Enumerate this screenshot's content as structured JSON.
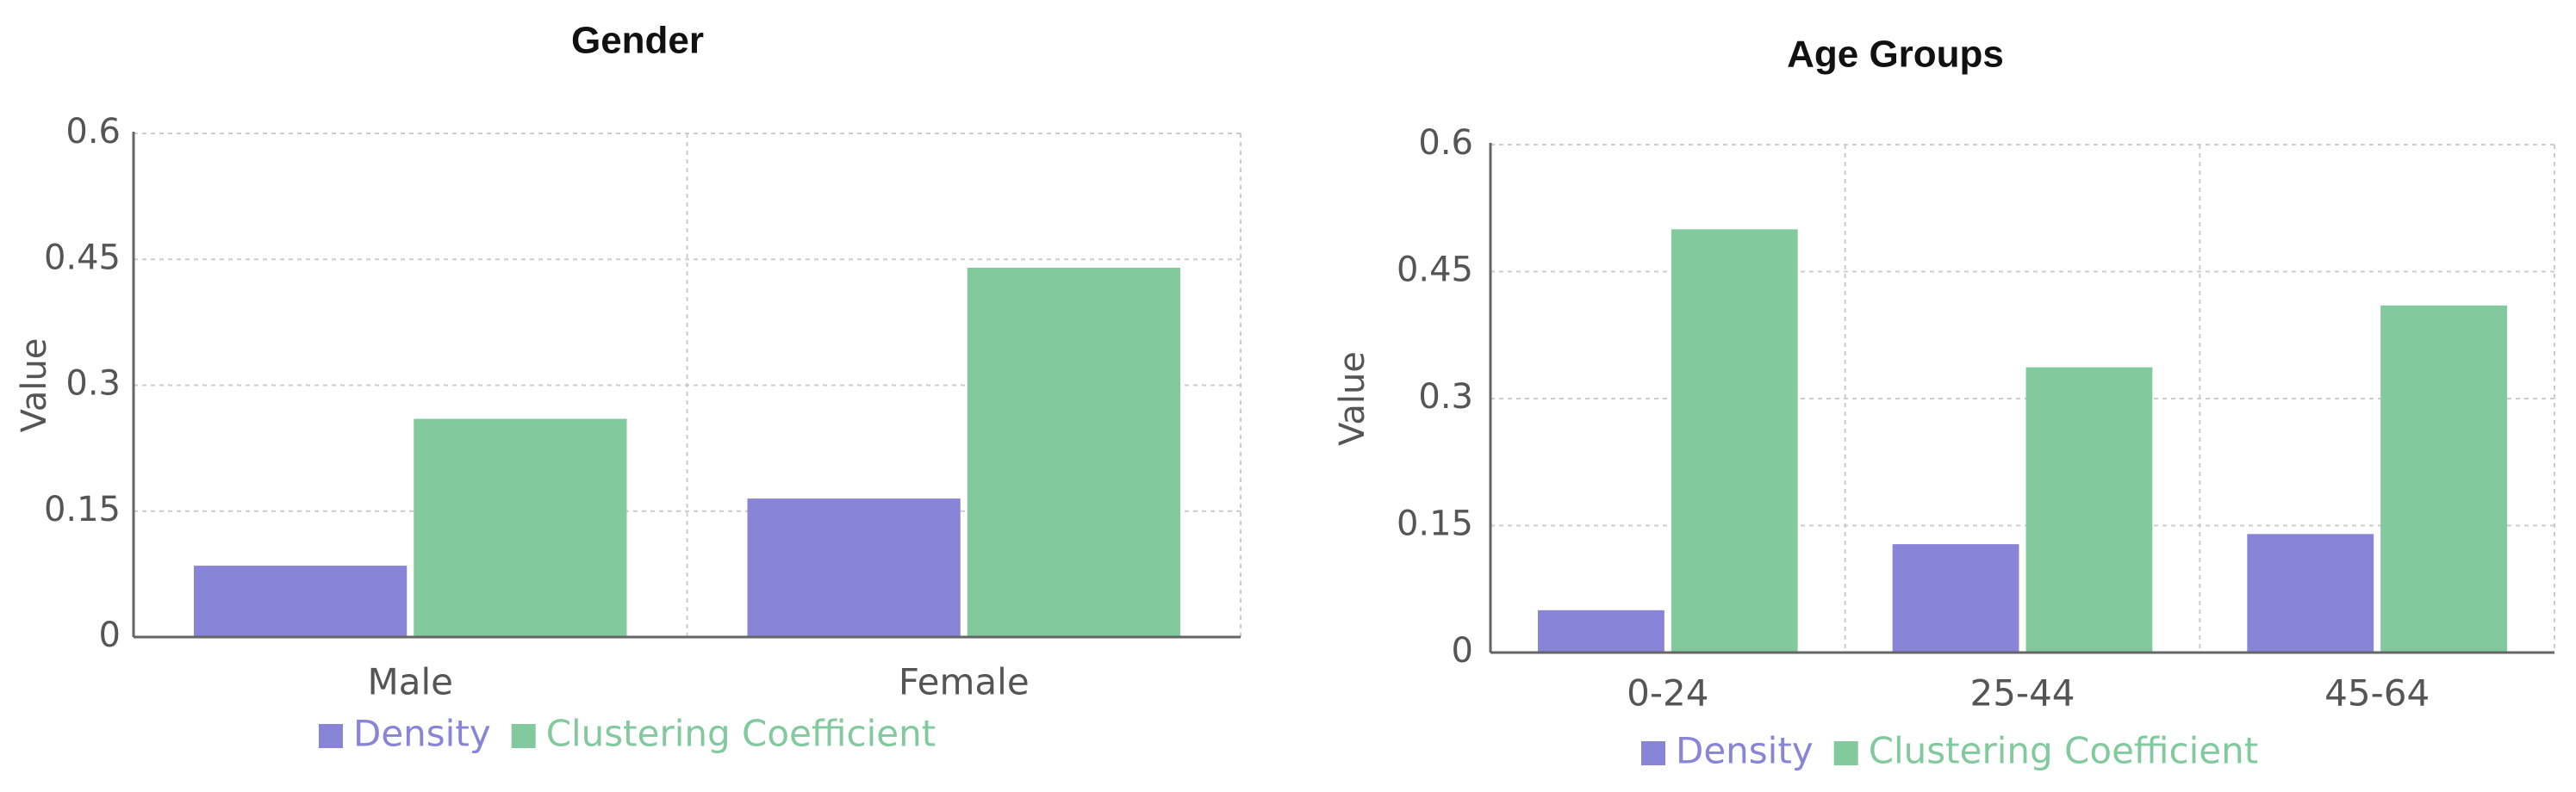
{
  "chart_data": [
    {
      "type": "bar",
      "title": "Gender",
      "ylabel": "Value",
      "xlabel": "",
      "ylim": [
        0,
        0.6
      ],
      "yticks": [
        "0",
        "0.15",
        "0.3",
        "0.45",
        "0.6"
      ],
      "categories": [
        "Male",
        "Female"
      ],
      "series": [
        {
          "name": "Density",
          "values": [
            0.085,
            0.165
          ],
          "color": "#8884d8"
        },
        {
          "name": "Clustering Coefficient",
          "values": [
            0.26,
            0.44
          ],
          "color": "#82ca9d"
        }
      ],
      "grid": true,
      "legend": "bottom"
    },
    {
      "type": "bar",
      "title": "Age Groups",
      "ylabel": "Value",
      "xlabel": "",
      "ylim": [
        0,
        0.6
      ],
      "yticks": [
        "0",
        "0.15",
        "0.3",
        "0.45",
        "0.6"
      ],
      "categories": [
        "0-24",
        "25-44",
        "45-64"
      ],
      "series": [
        {
          "name": "Density",
          "values": [
            0.05,
            0.128,
            0.14
          ],
          "color": "#8884d8"
        },
        {
          "name": "Clustering Coefficient",
          "values": [
            0.5,
            0.337,
            0.41
          ],
          "color": "#82ca9d"
        }
      ],
      "grid": true,
      "legend": "bottom"
    }
  ]
}
